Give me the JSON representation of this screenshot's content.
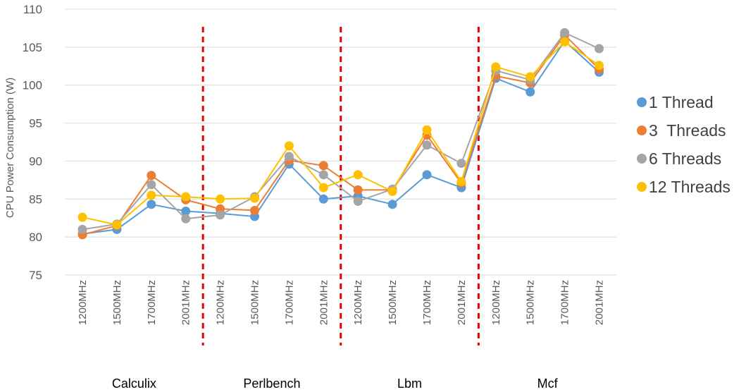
{
  "chart_data": {
    "type": "line",
    "ylabel": "CPU Power Consumption (W)",
    "ylim": [
      75,
      110
    ],
    "ytick_step": 5,
    "grid": true,
    "legend_position": "right",
    "groups": [
      "Calculix",
      "Perlbench",
      "Lbm",
      "Mcf"
    ],
    "categories": [
      "1200MHz",
      "1500MHz",
      "1700MHz",
      "2001MHz",
      "1200MHz",
      "1500MHz",
      "1700MHz",
      "2001MHz",
      "1200MHz",
      "1500MHz",
      "1700MHz",
      "2001MHz",
      "1200MHz",
      "1500MHz",
      "1700MHz",
      "2001MHz"
    ],
    "series": [
      {
        "name": "1 Thread",
        "color": "#5B9BD5",
        "values": [
          80.4,
          81.0,
          84.3,
          83.4,
          83.1,
          82.7,
          89.6,
          85.0,
          85.4,
          84.3,
          88.2,
          86.5,
          100.9,
          99.1,
          105.8,
          101.7
        ]
      },
      {
        "name": "3  Threads",
        "color": "#ED7D31",
        "values": [
          80.3,
          81.5,
          88.1,
          84.9,
          83.7,
          83.5,
          90.1,
          89.4,
          86.2,
          86.2,
          93.4,
          87.1,
          101.2,
          100.3,
          106.6,
          102.1
        ]
      },
      {
        "name": "6 Threads",
        "color": "#A5A5A5",
        "values": [
          81.0,
          81.7,
          86.9,
          82.4,
          82.9,
          85.3,
          90.6,
          88.2,
          84.7,
          86.3,
          92.1,
          89.7,
          101.9,
          100.7,
          106.9,
          104.8
        ]
      },
      {
        "name": "12 Threads",
        "color": "#FFC000",
        "values": [
          82.6,
          81.6,
          85.5,
          85.3,
          85.0,
          85.1,
          92.0,
          86.5,
          88.2,
          86.0,
          94.1,
          87.3,
          102.4,
          101.1,
          105.7,
          102.6
        ]
      }
    ],
    "separator_color": "#E60000"
  }
}
